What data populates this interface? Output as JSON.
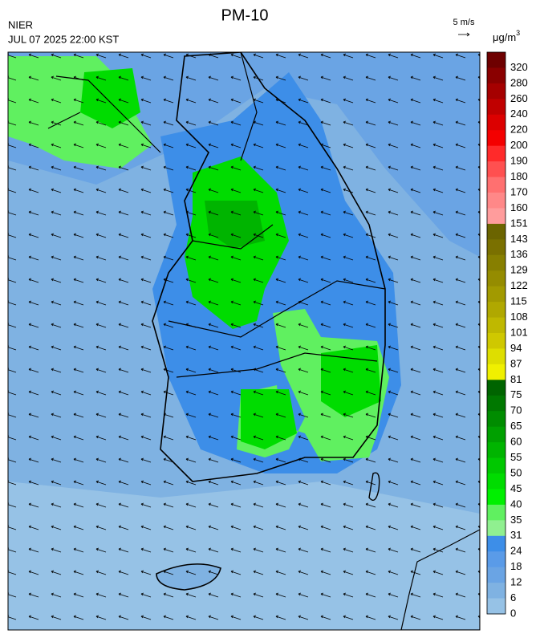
{
  "header": {
    "title": "PM-10",
    "source": "NIER",
    "datetime": "JUL 07 2025 22:00 KST",
    "wind_scale": "5 m/s"
  },
  "legend": {
    "unit": {
      "base": "μg/m",
      "sup": "3"
    },
    "bins": [
      {
        "label": 320,
        "color": "#6e0000"
      },
      {
        "label": 280,
        "color": "#8a0000"
      },
      {
        "label": 260,
        "color": "#a50000"
      },
      {
        "label": 240,
        "color": "#c00000"
      },
      {
        "label": 220,
        "color": "#dc0000"
      },
      {
        "label": 200,
        "color": "#f40000"
      },
      {
        "label": 190,
        "color": "#ff2a2a"
      },
      {
        "label": 180,
        "color": "#ff5050"
      },
      {
        "label": 170,
        "color": "#ff7070"
      },
      {
        "label": 160,
        "color": "#ff8888"
      },
      {
        "label": 151,
        "color": "#ff9c9c"
      },
      {
        "label": 143,
        "color": "#6b6400"
      },
      {
        "label": 136,
        "color": "#7a7000"
      },
      {
        "label": 129,
        "color": "#877f00"
      },
      {
        "label": 122,
        "color": "#958c00"
      },
      {
        "label": 115,
        "color": "#a29a00"
      },
      {
        "label": 108,
        "color": "#b0a800"
      },
      {
        "label": 101,
        "color": "#bfb800"
      },
      {
        "label": 94,
        "color": "#cfc800"
      },
      {
        "label": 87,
        "color": "#dede00"
      },
      {
        "label": 81,
        "color": "#f0f000"
      },
      {
        "label": 75,
        "color": "#006400"
      },
      {
        "label": 70,
        "color": "#007800"
      },
      {
        "label": 65,
        "color": "#008c00"
      },
      {
        "label": 60,
        "color": "#00a000"
      },
      {
        "label": 55,
        "color": "#00b400"
      },
      {
        "label": 50,
        "color": "#00c800"
      },
      {
        "label": 45,
        "color": "#00dc00"
      },
      {
        "label": 40,
        "color": "#00f000"
      },
      {
        "label": 35,
        "color": "#60f060"
      },
      {
        "label": 31,
        "color": "#90f090"
      },
      {
        "label": 24,
        "color": "#3d8ee8"
      },
      {
        "label": 18,
        "color": "#5a9be8"
      },
      {
        "label": 12,
        "color": "#6aa4e4"
      },
      {
        "label": 6,
        "color": "#7fb2e2"
      },
      {
        "label": 0,
        "color": "#96c2e6"
      }
    ]
  }
}
